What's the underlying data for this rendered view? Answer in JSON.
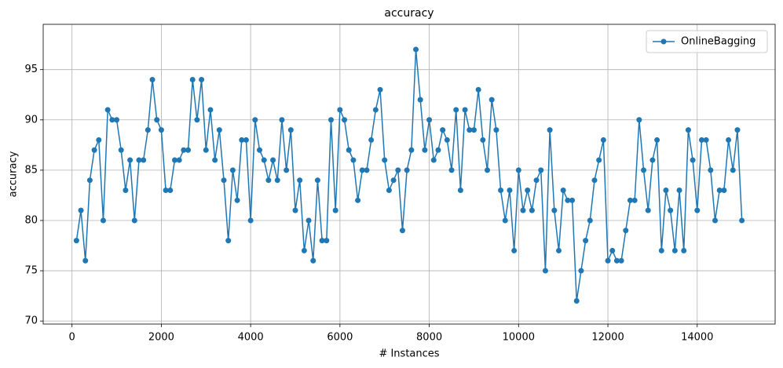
{
  "chart_data": {
    "type": "line",
    "title": "accuracy",
    "x_label": "# Instances",
    "y_label": "accuracy",
    "x": [
      100,
      200,
      300,
      400,
      500,
      600,
      700,
      800,
      900,
      1000,
      1100,
      1200,
      1300,
      1400,
      1500,
      1600,
      1700,
      1800,
      1900,
      2000,
      2100,
      2200,
      2300,
      2400,
      2500,
      2600,
      2700,
      2800,
      2900,
      3000,
      3100,
      3200,
      3300,
      3400,
      3500,
      3600,
      3700,
      3800,
      3900,
      4000,
      4100,
      4200,
      4300,
      4400,
      4500,
      4600,
      4700,
      4800,
      4900,
      5000,
      5100,
      5200,
      5300,
      5400,
      5500,
      5600,
      5700,
      5800,
      5900,
      6000,
      6100,
      6200,
      6300,
      6400,
      6500,
      6600,
      6700,
      6800,
      6900,
      7000,
      7100,
      7200,
      7300,
      7400,
      7500,
      7600,
      7700,
      7800,
      7900,
      8000,
      8100,
      8200,
      8300,
      8400,
      8500,
      8600,
      8700,
      8800,
      8900,
      9000,
      9100,
      9200,
      9300,
      9400,
      9500,
      9600,
      9700,
      9800,
      9900,
      10000,
      10100,
      10200,
      10300,
      10400,
      10500,
      10600,
      10700,
      10800,
      10900,
      11000,
      11100,
      11200,
      11300,
      11400,
      11500,
      11600,
      11700,
      11800,
      11900,
      12000,
      12100,
      12200,
      12300,
      12400,
      12500,
      12600,
      12700,
      12800,
      12900,
      13000,
      13100,
      13200,
      13300,
      13400,
      13500,
      13600,
      13700,
      13800,
      13900,
      14000,
      14100,
      14200,
      14300,
      14400,
      14500,
      14600,
      14700,
      14800,
      14900,
      15000
    ],
    "series": [
      {
        "name": "OnlineBagging",
        "color": "#1f77b4",
        "values": [
          78,
          81,
          76,
          84,
          87,
          88,
          80,
          91,
          90,
          90,
          87,
          83,
          86,
          80,
          86,
          86,
          89,
          94,
          90,
          89,
          83,
          83,
          86,
          86,
          87,
          87,
          94,
          90,
          94,
          87,
          91,
          86,
          89,
          84,
          78,
          85,
          82,
          88,
          88,
          80,
          90,
          87,
          86,
          84,
          86,
          84,
          90,
          85,
          89,
          81,
          84,
          77,
          80,
          76,
          84,
          78,
          78,
          90,
          81,
          91,
          90,
          87,
          86,
          82,
          85,
          85,
          88,
          91,
          93,
          86,
          83,
          84,
          85,
          79,
          85,
          87,
          97,
          92,
          87,
          90,
          86,
          87,
          89,
          88,
          85,
          91,
          83,
          91,
          89,
          89,
          93,
          88,
          85,
          92,
          89,
          83,
          80,
          83,
          77,
          85,
          81,
          83,
          81,
          84,
          85,
          75,
          89,
          81,
          77,
          83,
          82,
          82,
          72,
          75,
          78,
          80,
          84,
          86,
          88,
          76,
          77,
          76,
          76,
          79,
          82,
          82,
          90,
          85,
          81,
          86,
          88,
          77,
          83,
          81,
          77,
          83,
          77,
          89,
          86,
          81,
          88,
          88,
          85,
          80,
          83,
          83,
          88,
          85,
          89,
          80
        ]
      }
    ],
    "xlim": [
      -645,
      15745
    ],
    "ylim": [
      69.7,
      99.5
    ],
    "xticks": [
      0,
      2000,
      4000,
      6000,
      8000,
      10000,
      12000,
      14000
    ],
    "yticks": [
      70,
      75,
      80,
      85,
      90,
      95
    ],
    "grid": true,
    "legend": "upper right"
  }
}
